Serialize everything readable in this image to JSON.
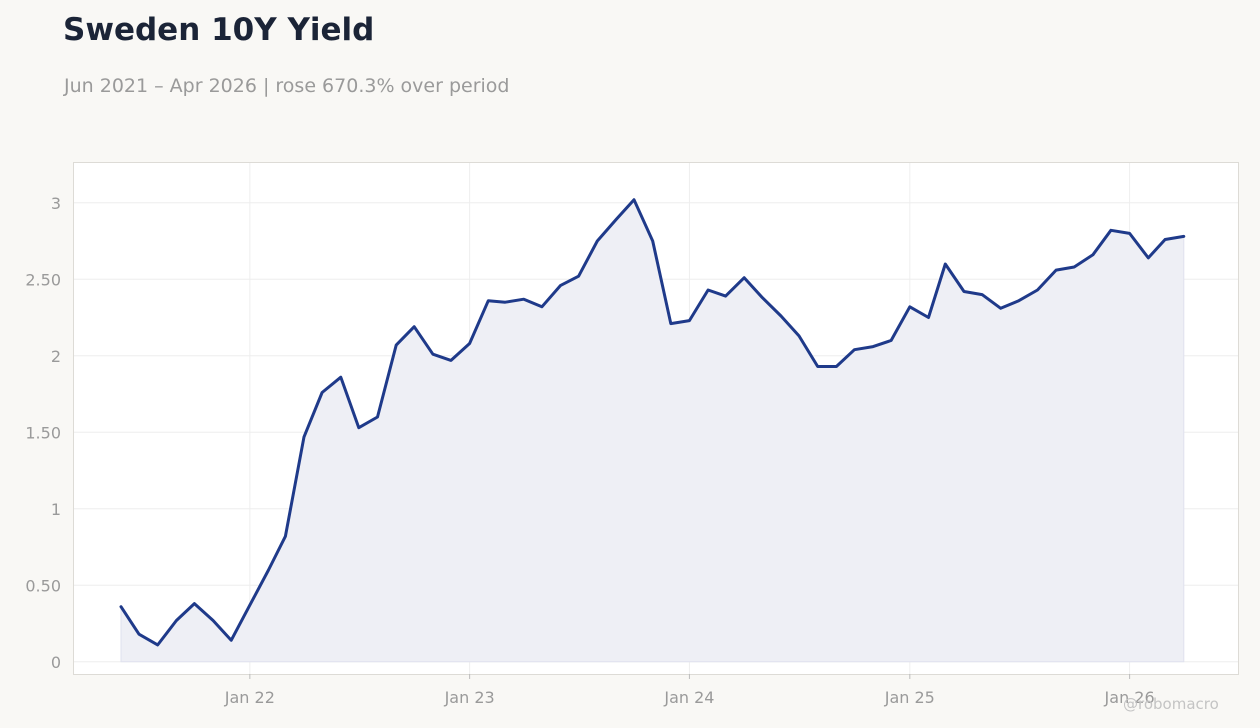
{
  "header": {
    "title": "Sweden 10Y Yield",
    "subtitle": "Jun 2021 – Apr 2026 | rose 670.3% over period"
  },
  "watermark": "@robomacro",
  "colors": {
    "line": "#1f3a8a",
    "area": "#eeeff5",
    "grid": "#eeeeee",
    "axis_text": "#9a9a9a",
    "title": "#1b2437",
    "background": "#f9f8f5",
    "plot_background": "#ffffff"
  },
  "chart_data": {
    "type": "area",
    "title": "Sweden 10Y Yield",
    "subtitle": "Jun 2021 – Apr 2026 | rose 670.3% over period",
    "xlabel": "",
    "ylabel": "",
    "grid": true,
    "legend": "none",
    "ylim": [
      -0.08,
      3.26
    ],
    "xlim": [
      "2021-03-15",
      "2026-06-30"
    ],
    "y_ticks": [
      0,
      0.5,
      1,
      1.5,
      2,
      2.5,
      3
    ],
    "y_tick_labels": [
      "0",
      "0.50",
      "1",
      "1.50",
      "2",
      "2.50",
      "3"
    ],
    "x_ticks": [
      "2022-01-01",
      "2023-01-01",
      "2024-01-01",
      "2025-01-01",
      "2026-01-01"
    ],
    "x_tick_labels": [
      "Jan 22",
      "Jan 23",
      "Jan 24",
      "Jan 25",
      "Jan 26"
    ],
    "series": [
      {
        "x": [
          "2021-06-01",
          "2021-07-01",
          "2021-08-01",
          "2021-09-01",
          "2021-10-01",
          "2021-11-01",
          "2021-12-01",
          "2022-01-01",
          "2022-02-01",
          "2022-03-01",
          "2022-04-01",
          "2022-05-01",
          "2022-06-01",
          "2022-07-01",
          "2022-08-01",
          "2022-09-01",
          "2022-10-01",
          "2022-11-01",
          "2022-12-01",
          "2023-01-01",
          "2023-02-01",
          "2023-03-01",
          "2023-04-01",
          "2023-05-01",
          "2023-06-01",
          "2023-07-01",
          "2023-08-01",
          "2023-09-01",
          "2023-10-01",
          "2023-11-01",
          "2023-12-01",
          "2024-01-01",
          "2024-02-01",
          "2024-03-01",
          "2024-04-01",
          "2024-05-01",
          "2024-06-01",
          "2024-07-01",
          "2024-08-01",
          "2024-09-01",
          "2024-10-01",
          "2024-11-01",
          "2024-12-01",
          "2025-01-01",
          "2025-02-01",
          "2025-03-01",
          "2025-04-01",
          "2025-05-01",
          "2025-06-01",
          "2025-07-01",
          "2025-08-01",
          "2025-09-01",
          "2025-10-01",
          "2025-11-01",
          "2025-12-01",
          "2026-01-01",
          "2026-02-01",
          "2026-03-01",
          "2026-04-01"
        ],
        "values": [
          0.36,
          0.18,
          0.11,
          0.27,
          0.38,
          0.27,
          0.14,
          0.37,
          0.6,
          0.82,
          1.47,
          1.76,
          1.86,
          1.53,
          1.6,
          2.07,
          2.19,
          2.01,
          1.97,
          2.08,
          2.36,
          2.35,
          2.37,
          2.32,
          2.46,
          2.52,
          2.75,
          2.89,
          3.02,
          2.75,
          2.21,
          2.23,
          2.43,
          2.39,
          2.51,
          2.38,
          2.26,
          2.13,
          1.93,
          1.93,
          2.04,
          2.06,
          2.1,
          2.32,
          2.25,
          2.6,
          2.42,
          2.4,
          2.31,
          2.36,
          2.43,
          2.56,
          2.58,
          2.66,
          2.82,
          2.8,
          2.64,
          2.76,
          2.78
        ]
      }
    ]
  }
}
